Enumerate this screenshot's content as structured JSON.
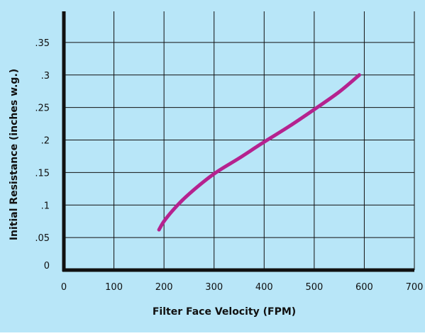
{
  "chart_data": {
    "type": "line",
    "title": "",
    "xlabel": "Filter Face Velocity (FPM)",
    "ylabel": "Initial Resistance (inches w.g.)",
    "xlim": [
      0,
      700
    ],
    "ylim": [
      0,
      0.4
    ],
    "grid": true,
    "x_ticks": [
      {
        "value": 0,
        "label": "0"
      },
      {
        "value": 100,
        "label": "100"
      },
      {
        "value": 200,
        "label": "200"
      },
      {
        "value": 300,
        "label": "300"
      },
      {
        "value": 400,
        "label": "400"
      },
      {
        "value": 500,
        "label": "500"
      },
      {
        "value": 600,
        "label": "600"
      },
      {
        "value": 700,
        "label": "700"
      }
    ],
    "y_ticks": [
      {
        "value": 0,
        "label": "0"
      },
      {
        "value": 0.05,
        "label": ".05"
      },
      {
        "value": 0.1,
        "label": ".1"
      },
      {
        "value": 0.15,
        "label": ".15"
      },
      {
        "value": 0.2,
        "label": ".2"
      },
      {
        "value": 0.25,
        "label": ".25"
      },
      {
        "value": 0.3,
        "label": ".3"
      },
      {
        "value": 0.35,
        "label": ".35"
      }
    ],
    "series": [
      {
        "color": "#b5228f",
        "points": [
          {
            "x": 190,
            "y": 0.062
          },
          {
            "x": 200,
            "y": 0.075
          },
          {
            "x": 220,
            "y": 0.094
          },
          {
            "x": 250,
            "y": 0.117
          },
          {
            "x": 300,
            "y": 0.148
          },
          {
            "x": 350,
            "y": 0.172
          },
          {
            "x": 400,
            "y": 0.197
          },
          {
            "x": 450,
            "y": 0.221
          },
          {
            "x": 500,
            "y": 0.247
          },
          {
            "x": 550,
            "y": 0.274
          },
          {
            "x": 590,
            "y": 0.3
          }
        ]
      }
    ],
    "colors": {
      "background": "#b8e6f8",
      "grid": "#111111",
      "axis": "#111111",
      "line": "#b5228f"
    }
  }
}
